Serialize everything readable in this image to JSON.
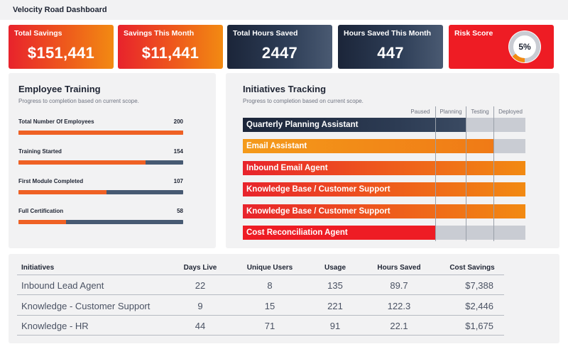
{
  "app": {
    "title": "Velocity Road Dashboard"
  },
  "kpis": [
    {
      "label": "Total Savings",
      "value": "$151,441"
    },
    {
      "label": "Savings This Month",
      "value": "$11,441"
    },
    {
      "label": "Total Hours Saved",
      "value": "2447"
    },
    {
      "label": "Hours Saved This Month",
      "value": "447"
    }
  ],
  "risk": {
    "label": "Risk Score",
    "value": "5%",
    "percent": 5,
    "colors": {
      "track": "#c9ccd3",
      "arc": "#f28a12",
      "arc_start": "#ee1c24"
    }
  },
  "training": {
    "title": "Employee Training",
    "subtitle": "Progress to completion based on current scope.",
    "total": 200,
    "rows": [
      {
        "label": "Total Number Of Employees",
        "count": "200",
        "value": 200
      },
      {
        "label": "Training Started",
        "count": "154",
        "value": 154
      },
      {
        "label": "First Module Completed",
        "count": "107",
        "value": 107
      },
      {
        "label": "Full Certification",
        "count": "58",
        "value": 58
      }
    ]
  },
  "initiatives": {
    "title": "Initiatives Tracking",
    "subtitle": "Progress to completion based on current scope.",
    "stages": [
      "Paused",
      "Planning",
      "Testing",
      "Deployed"
    ],
    "rows": [
      {
        "label": "Quarterly Planning Assistant",
        "progress": 0.79,
        "style": "navy"
      },
      {
        "label": "Email Assistant",
        "progress": 0.89,
        "style": "orange"
      },
      {
        "label": "Inbound Email Agent",
        "progress": 1.0,
        "style": "redorange"
      },
      {
        "label": "Knowledge Base / Customer Support",
        "progress": 1.0,
        "style": "redorange"
      },
      {
        "label": "Knowledge Base / Customer Support",
        "progress": 1.0,
        "style": "redorange"
      },
      {
        "label": "Cost Reconciliation Agent",
        "progress": 0.68,
        "style": "red"
      }
    ]
  },
  "table": {
    "headers": [
      "Initiatives",
      "Days Live",
      "Unique Users",
      "Usage",
      "Hours Saved",
      "Cost Savings"
    ],
    "rows": [
      [
        "Inbound Lead Agent",
        "22",
        "8",
        "135",
        "89.7",
        "$7,388"
      ],
      [
        "Knowledge - Customer Support",
        "9",
        "15",
        "221",
        "122.3",
        "$2,446"
      ],
      [
        "Knowledge - HR",
        "44",
        "71",
        "91",
        "22.1",
        "$1,675"
      ]
    ]
  }
}
